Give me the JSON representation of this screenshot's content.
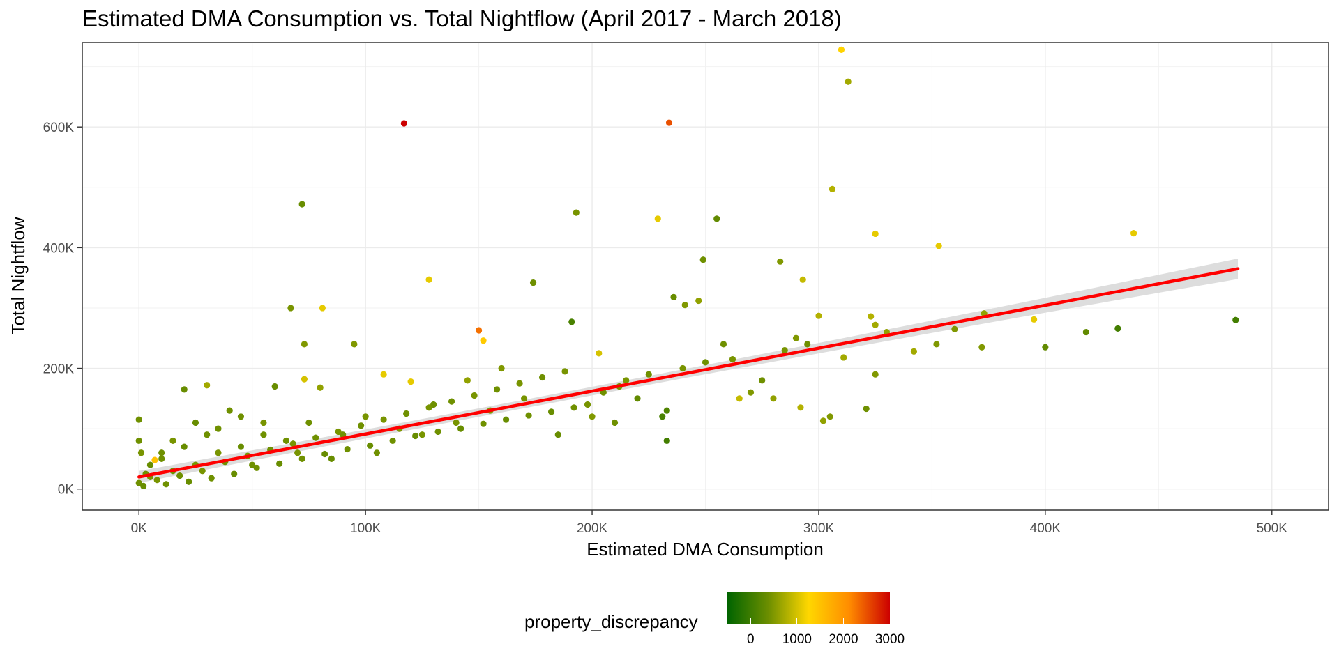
{
  "chart_data": {
    "type": "scatter",
    "title": "Estimated DMA Consumption vs. Total Nightflow (April 2017 - March 2018)",
    "xlabel": "Estimated DMA Consumption",
    "ylabel": "Total Nightflow",
    "xlim": [
      -25000,
      525000
    ],
    "ylim": [
      -35000,
      740000
    ],
    "x_ticks": [
      0,
      100000,
      200000,
      300000,
      400000,
      500000
    ],
    "x_tick_labels": [
      "0K",
      "100K",
      "200K",
      "300K",
      "400K",
      "500K"
    ],
    "y_ticks": [
      0,
      200000,
      400000,
      600000
    ],
    "y_tick_labels": [
      "0K",
      "200K",
      "400K",
      "600K"
    ],
    "grid": true,
    "color_by": "property_discrepancy",
    "legend": {
      "title": "property_discrepancy",
      "placement": "bottom",
      "range": [
        -500,
        3000
      ],
      "ticks": [
        0,
        1000,
        2000,
        3000
      ],
      "tick_labels": [
        "0",
        "1000",
        "2000",
        "3000"
      ],
      "colors": [
        "#006400",
        "#6b8e00",
        "#ffd700",
        "#ff8c00",
        "#cc0000"
      ]
    },
    "trend_line": {
      "method": "linear",
      "color": "#ff0000",
      "x": [
        0,
        485000
      ],
      "y": [
        20000,
        365000
      ],
      "ci_halfwidth": [
        7000,
        17000
      ],
      "ci_color": "#d9d9d9"
    },
    "series": [
      {
        "points": [
          [
            234000,
            607000,
            2500
          ],
          [
            117000,
            606000,
            3200
          ],
          [
            310000,
            728000,
            1300
          ],
          [
            313000,
            675000,
            700
          ],
          [
            306000,
            497000,
            800
          ],
          [
            72000,
            472000,
            350
          ],
          [
            193000,
            458000,
            450
          ],
          [
            229000,
            448000,
            1100
          ],
          [
            255000,
            448000,
            300
          ],
          [
            325000,
            423000,
            1100
          ],
          [
            353000,
            403000,
            1100
          ],
          [
            439000,
            424000,
            1100
          ],
          [
            249000,
            380000,
            400
          ],
          [
            283000,
            377000,
            500
          ],
          [
            128000,
            347000,
            1100
          ],
          [
            293000,
            347000,
            900
          ],
          [
            174000,
            342000,
            400
          ],
          [
            236000,
            318000,
            350
          ],
          [
            247000,
            312000,
            600
          ],
          [
            241000,
            305000,
            500
          ],
          [
            67000,
            300000,
            450
          ],
          [
            81000,
            300000,
            1100
          ],
          [
            191000,
            277000,
            100
          ],
          [
            432000,
            266000,
            50
          ],
          [
            484000,
            280000,
            50
          ],
          [
            418000,
            260000,
            300
          ],
          [
            400000,
            235000,
            300
          ],
          [
            395000,
            281000,
            1100
          ],
          [
            373000,
            291000,
            600
          ],
          [
            372000,
            235000,
            500
          ],
          [
            352000,
            240000,
            500
          ],
          [
            342000,
            228000,
            700
          ],
          [
            323000,
            286000,
            800
          ],
          [
            325000,
            272000,
            700
          ],
          [
            300000,
            287000,
            800
          ],
          [
            302000,
            113000,
            600
          ],
          [
            305000,
            120000,
            500
          ],
          [
            321000,
            133000,
            400
          ],
          [
            325000,
            190000,
            500
          ],
          [
            292000,
            135000,
            800
          ],
          [
            150000,
            263000,
            2300
          ],
          [
            152000,
            246000,
            1400
          ],
          [
            120000,
            178000,
            1100
          ],
          [
            80000,
            168000,
            600
          ],
          [
            73000,
            240000,
            500
          ],
          [
            95000,
            240000,
            500
          ],
          [
            30000,
            172000,
            700
          ],
          [
            20000,
            165000,
            350
          ],
          [
            7000,
            48000,
            1500
          ],
          [
            0,
            115000,
            400
          ],
          [
            73000,
            182000,
            1000
          ],
          [
            108000,
            190000,
            1100
          ],
          [
            203000,
            225000,
            1000
          ],
          [
            233000,
            80000,
            50
          ],
          [
            231000,
            120000,
            100
          ],
          [
            233000,
            130000,
            150
          ],
          [
            258000,
            240000,
            400
          ],
          [
            265000,
            150000,
            900
          ],
          [
            270000,
            160000,
            500
          ],
          [
            280000,
            150000,
            600
          ],
          [
            290000,
            250000,
            500
          ],
          [
            311000,
            218000,
            700
          ],
          [
            330000,
            260000,
            600
          ],
          [
            360000,
            265000,
            500
          ],
          [
            215000,
            180000,
            450
          ],
          [
            220000,
            150000,
            300
          ],
          [
            210000,
            110000,
            400
          ],
          [
            200000,
            120000,
            500
          ],
          [
            185000,
            90000,
            350
          ],
          [
            170000,
            150000,
            450
          ],
          [
            160000,
            200000,
            500
          ],
          [
            155000,
            130000,
            500
          ],
          [
            145000,
            180000,
            600
          ],
          [
            140000,
            110000,
            450
          ],
          [
            130000,
            140000,
            400
          ],
          [
            125000,
            90000,
            450
          ],
          [
            115000,
            100000,
            500
          ],
          [
            105000,
            60000,
            400
          ],
          [
            100000,
            120000,
            450
          ],
          [
            90000,
            90000,
            400
          ],
          [
            85000,
            50000,
            350
          ],
          [
            75000,
            110000,
            400
          ],
          [
            70000,
            60000,
            450
          ],
          [
            65000,
            80000,
            400
          ],
          [
            60000,
            170000,
            350
          ],
          [
            55000,
            90000,
            400
          ],
          [
            50000,
            40000,
            400
          ],
          [
            45000,
            70000,
            350
          ],
          [
            40000,
            130000,
            400
          ],
          [
            35000,
            60000,
            450
          ],
          [
            30000,
            90000,
            400
          ],
          [
            25000,
            40000,
            450
          ],
          [
            20000,
            70000,
            350
          ],
          [
            15000,
            30000,
            400
          ],
          [
            10000,
            50000,
            400
          ],
          [
            5000,
            20000,
            450
          ],
          [
            0,
            10000,
            400
          ],
          [
            2000,
            5000,
            350
          ],
          [
            8000,
            15000,
            450
          ],
          [
            12000,
            8000,
            400
          ],
          [
            18000,
            22000,
            400
          ],
          [
            22000,
            12000,
            350
          ],
          [
            28000,
            30000,
            450
          ],
          [
            32000,
            18000,
            400
          ],
          [
            38000,
            45000,
            400
          ],
          [
            42000,
            25000,
            350
          ],
          [
            48000,
            55000,
            450
          ],
          [
            52000,
            35000,
            400
          ],
          [
            58000,
            65000,
            400
          ],
          [
            62000,
            42000,
            350
          ],
          [
            68000,
            75000,
            450
          ],
          [
            72000,
            50000,
            400
          ],
          [
            78000,
            85000,
            400
          ],
          [
            82000,
            58000,
            350
          ],
          [
            88000,
            95000,
            450
          ],
          [
            92000,
            66000,
            400
          ],
          [
            98000,
            105000,
            400
          ],
          [
            102000,
            72000,
            350
          ],
          [
            108000,
            115000,
            450
          ],
          [
            112000,
            80000,
            400
          ],
          [
            118000,
            125000,
            400
          ],
          [
            122000,
            88000,
            350
          ],
          [
            128000,
            135000,
            450
          ],
          [
            132000,
            95000,
            400
          ],
          [
            138000,
            145000,
            400
          ],
          [
            142000,
            100000,
            350
          ],
          [
            148000,
            155000,
            450
          ],
          [
            152000,
            108000,
            400
          ],
          [
            158000,
            165000,
            400
          ],
          [
            162000,
            115000,
            350
          ],
          [
            168000,
            175000,
            450
          ],
          [
            172000,
            122000,
            400
          ],
          [
            178000,
            185000,
            400
          ],
          [
            182000,
            128000,
            350
          ],
          [
            188000,
            195000,
            450
          ],
          [
            192000,
            135000,
            400
          ],
          [
            198000,
            140000,
            450
          ],
          [
            205000,
            160000,
            400
          ],
          [
            212000,
            170000,
            450
          ],
          [
            225000,
            190000,
            400
          ],
          [
            240000,
            200000,
            450
          ],
          [
            250000,
            210000,
            400
          ],
          [
            262000,
            215000,
            450
          ],
          [
            275000,
            180000,
            400
          ],
          [
            285000,
            230000,
            450
          ],
          [
            295000,
            240000,
            400
          ],
          [
            45000,
            120000,
            400
          ],
          [
            55000,
            110000,
            450
          ],
          [
            35000,
            100000,
            400
          ],
          [
            25000,
            110000,
            350
          ],
          [
            15000,
            80000,
            450
          ],
          [
            10000,
            60000,
            400
          ],
          [
            5000,
            40000,
            350
          ],
          [
            3000,
            25000,
            400
          ],
          [
            1000,
            60000,
            450
          ],
          [
            0,
            80000,
            400
          ]
        ]
      }
    ]
  }
}
